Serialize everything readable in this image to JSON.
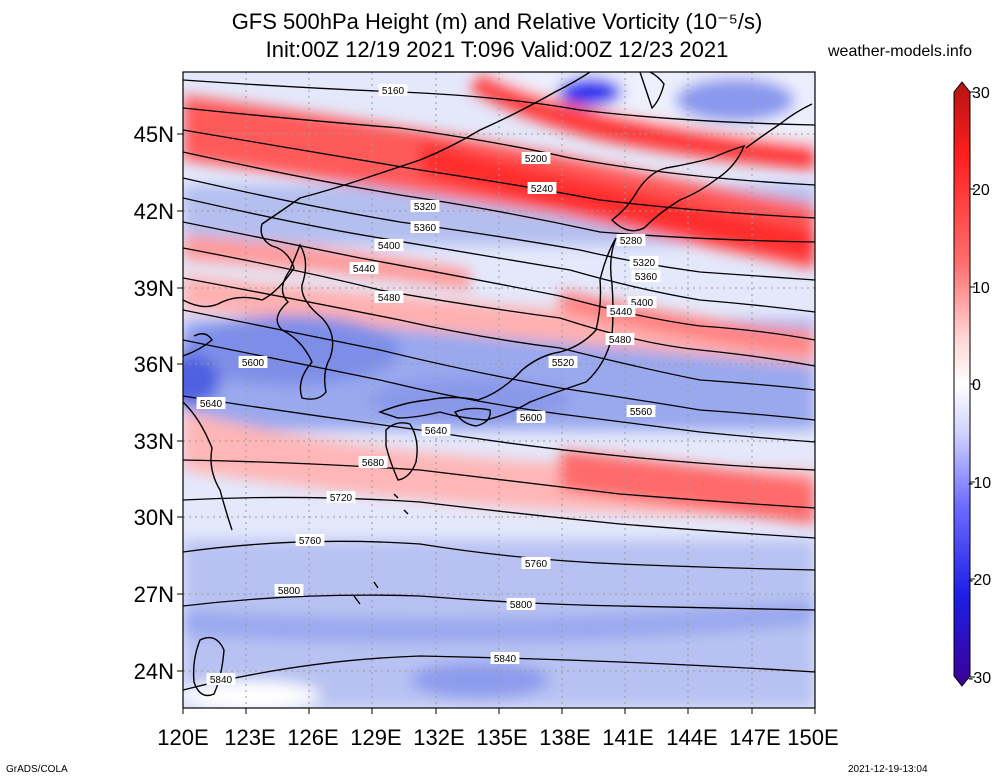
{
  "title_line1": "GFS 500hPa Height (m) and Relative Vorticity (10⁻⁵/s)",
  "title_line2": "Init:00Z 12/19 2021 T:096 Valid:00Z 12/23 2021",
  "website": "weather-models.info",
  "footer_left": "GrADS/COLA",
  "footer_right": "2021-12-19-13:04",
  "map": {
    "lon_range": [
      120,
      150
    ],
    "lat_range": [
      22.5,
      47.3
    ],
    "lat_ticks": [
      "45N",
      "42N",
      "39N",
      "36N",
      "33N",
      "30N",
      "27N",
      "24N"
    ],
    "lon_ticks": [
      "120E",
      "123E",
      "126E",
      "129E",
      "132E",
      "135E",
      "138E",
      "141E",
      "144E",
      "147E",
      "150E"
    ],
    "contour_labels": [
      "5160",
      "5200",
      "5240",
      "5280",
      "5320",
      "5320",
      "5360",
      "5360",
      "5400",
      "5400",
      "5440",
      "5440",
      "5480",
      "5480",
      "5520",
      "5560",
      "5600",
      "5600",
      "5640",
      "5640",
      "5680",
      "5720",
      "5760",
      "5760",
      "5800",
      "5800",
      "5840",
      "5840"
    ]
  },
  "colorbar": {
    "ticks": [
      "30",
      "20",
      "10",
      "0",
      "-10",
      "-20",
      "-30"
    ],
    "colors": {
      "max": "#b41414",
      "mid_pos": "#ff2828",
      "zero": "#ffffff",
      "mid_neg": "#2828ff",
      "min": "#3c0096"
    }
  }
}
